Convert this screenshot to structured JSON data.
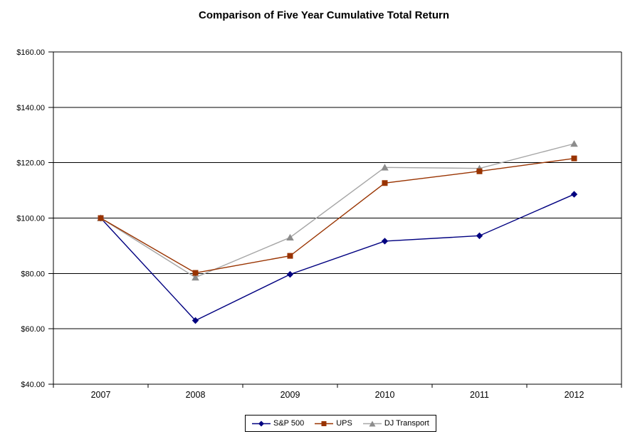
{
  "chart_data": {
    "type": "line",
    "title": "Comparison of Five Year Cumulative Total Return",
    "categories": [
      "2007",
      "2008",
      "2009",
      "2010",
      "2011",
      "2012"
    ],
    "series": [
      {
        "name": "S&P 500",
        "color": "#000080",
        "marker": "diamond",
        "marker_color": "#000080",
        "values": [
          100.0,
          63.0,
          79.67,
          91.67,
          93.61,
          108.59
        ]
      },
      {
        "name": "UPS",
        "color": "#993300",
        "marker": "square",
        "marker_color": "#993300",
        "values": [
          100.0,
          80.2,
          86.35,
          112.65,
          116.9,
          121.55
        ]
      },
      {
        "name": "DJ Transport",
        "color": "#A6A6A6",
        "marker": "triangle",
        "marker_color": "#8C8C8C",
        "values": [
          100.0,
          78.55,
          93.0,
          118.3,
          117.95,
          126.85
        ]
      }
    ],
    "ylim": [
      40,
      160
    ],
    "y_ticks": [
      {
        "value": 40,
        "label": "$40.00"
      },
      {
        "value": 60,
        "label": "$60.00"
      },
      {
        "value": 80,
        "label": "$80.00"
      },
      {
        "value": 100,
        "label": "$100.00"
      },
      {
        "value": 120,
        "label": "$120.00"
      },
      {
        "value": 140,
        "label": "$140.00"
      },
      {
        "value": 160,
        "label": "$160.00"
      }
    ],
    "xlabel": "",
    "ylabel": "",
    "grid": true,
    "gridline_color": "#000000",
    "legend_position": "bottom"
  }
}
